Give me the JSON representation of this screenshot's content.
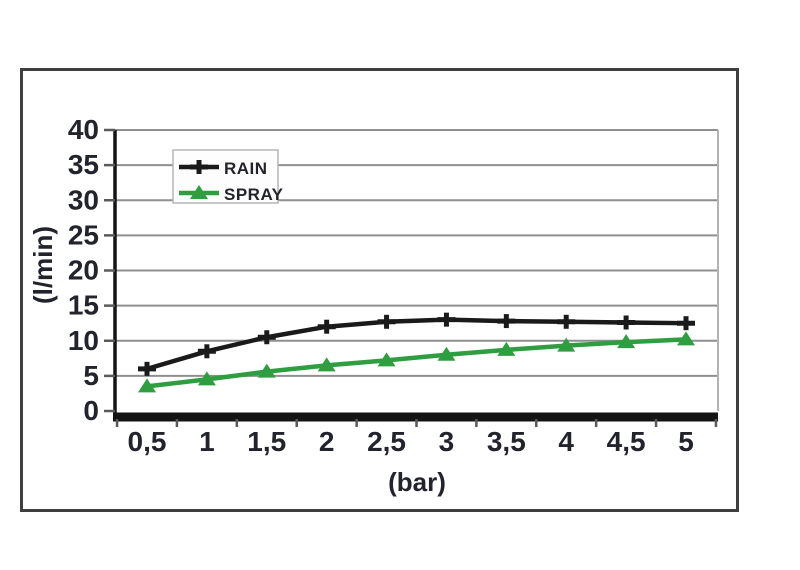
{
  "colors": {
    "figure_border": "#3f3f3f",
    "grid": "#8f8f8f",
    "plot_border": "#b3b3b3",
    "axis": "#141414",
    "tick": "#5a5a5a",
    "text": "#23232d",
    "legend_border": "#b5b5b5",
    "legend_fill": "#fdfdfd"
  },
  "chart_data": {
    "type": "line",
    "x": [
      0.5,
      1,
      1.5,
      2,
      2.5,
      3,
      3.5,
      4,
      4.5,
      5
    ],
    "x_tick_labels": [
      "0,5",
      "1",
      "1,5",
      "2",
      "2,5",
      "3",
      "3,5",
      "4",
      "4,5",
      "5"
    ],
    "ytick_labels": [
      "0",
      "5",
      "10",
      "15",
      "20",
      "25",
      "30",
      "35",
      "40"
    ],
    "ytick_step": 5,
    "ylim": [
      0,
      40
    ],
    "xlabel": "(bar)",
    "ylabel": "(l/min)",
    "grid": "horizontal",
    "legend_position": "top-left-inside",
    "series": [
      {
        "name": "RAIN",
        "color": "#1a1a1a",
        "marker": "plus",
        "values": [
          6,
          8.5,
          10.5,
          12,
          12.7,
          13,
          12.8,
          12.7,
          12.6,
          12.5
        ]
      },
      {
        "name": "SPRAY",
        "color": "#2f9e41",
        "marker": "triangle",
        "values": [
          3.5,
          4.5,
          5.6,
          6.5,
          7.2,
          8,
          8.7,
          9.3,
          9.8,
          10.2
        ]
      }
    ]
  }
}
